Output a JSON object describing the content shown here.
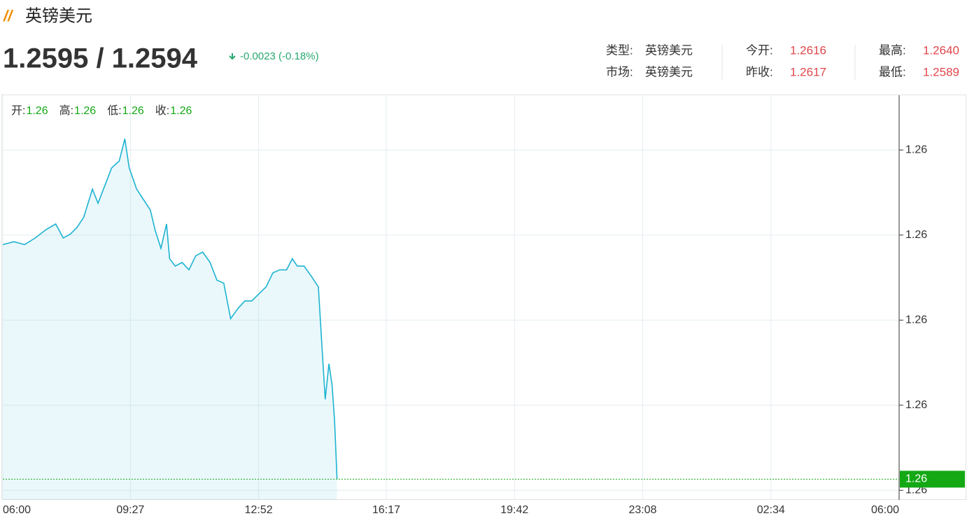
{
  "header": {
    "title": "英镑美元",
    "price": "1.2595 / 1.2594",
    "change": "-0.0023 (-0.18%)"
  },
  "info": [
    [
      {
        "label": "类型:",
        "value": "英镑美元"
      },
      {
        "label": "今开:",
        "value": "1.2616"
      },
      {
        "label": "最高:",
        "value": "1.2640"
      }
    ],
    [
      {
        "label": "市场:",
        "value": "英镑美元"
      },
      {
        "label": "昨收:",
        "value": "1.2617"
      },
      {
        "label": "最低:",
        "value": "1.2589"
      }
    ]
  ],
  "ohlc": [
    {
      "label": "开:",
      "value": "1.26"
    },
    {
      "label": "高:",
      "value": "1.26"
    },
    {
      "label": "低:",
      "value": "1.26"
    },
    {
      "label": "收:",
      "value": "1.26"
    }
  ],
  "chart_data": {
    "type": "line",
    "xlim": [
      0,
      1440
    ],
    "xticks": [
      {
        "value": 0,
        "label": "06:00"
      },
      {
        "value": 205,
        "label": "09:27"
      },
      {
        "value": 411,
        "label": "12:52"
      },
      {
        "value": 616,
        "label": "16:17"
      },
      {
        "value": 822,
        "label": "19:42"
      },
      {
        "value": 1028,
        "label": "23:08"
      },
      {
        "value": 1234,
        "label": "02:34"
      },
      {
        "value": 1440,
        "label": "06:00"
      }
    ],
    "ylim": [
      1.25912,
      1.26459
    ],
    "yticks": [
      {
        "value": 1.26385,
        "label": "1.26"
      },
      {
        "value": 1.2627,
        "label": "1.26"
      },
      {
        "value": 1.26155,
        "label": "1.26"
      },
      {
        "value": 1.2604,
        "label": "1.26"
      },
      {
        "value": 1.25925,
        "label": "1.26"
      }
    ],
    "grid": true,
    "last": {
      "value": 1.2594,
      "label": "1.26",
      "color": "#14a814"
    },
    "series": [
      {
        "color": "#1cb3d1",
        "x": [
          0,
          18,
          35,
          52,
          69,
          85,
          97,
          108,
          119,
          130,
          144,
          153,
          164,
          175,
          187,
          196,
          203,
          215,
          226,
          237,
          245,
          254,
          263,
          268,
          277,
          288,
          299,
          310,
          321,
          333,
          344,
          355,
          366,
          378,
          389,
          400,
          411,
          423,
          434,
          445,
          456,
          465,
          473,
          484,
          496,
          507,
          513,
          518,
          524,
          529,
          533,
          537
        ],
        "values": [
          1.26257,
          1.26261,
          1.26257,
          1.26266,
          1.26277,
          1.26285,
          1.26266,
          1.26271,
          1.2628,
          1.26294,
          1.26332,
          1.26313,
          1.26337,
          1.26361,
          1.2637,
          1.264,
          1.26361,
          1.26332,
          1.26318,
          1.26304,
          1.26276,
          1.26252,
          1.26285,
          1.26238,
          1.26228,
          1.26233,
          1.26223,
          1.26242,
          1.26247,
          1.26233,
          1.26209,
          1.26205,
          1.26157,
          1.26171,
          1.26181,
          1.26181,
          1.2619,
          1.262,
          1.26219,
          1.26223,
          1.26223,
          1.26238,
          1.26228,
          1.26228,
          1.26214,
          1.262,
          1.26115,
          1.26048,
          1.26096,
          1.26067,
          1.2602,
          1.2594
        ]
      }
    ]
  }
}
